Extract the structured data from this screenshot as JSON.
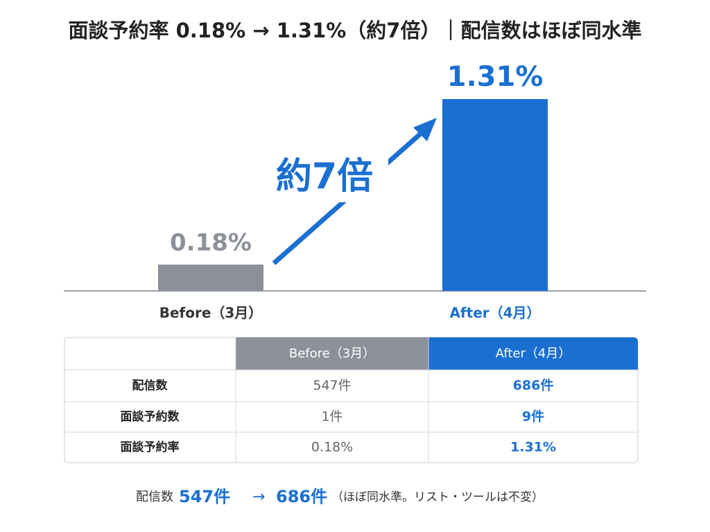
{
  "chart_data": {
    "type": "bar",
    "title": "面談予約率 0.18% → 1.31%（約7倍）｜配信数はほぼ同水準",
    "categories": [
      "Before（3月）",
      "After（4月）"
    ],
    "values": [
      0.18,
      1.31
    ],
    "value_labels": [
      "0.18%",
      "1.31%"
    ],
    "colors": [
      "#8b9099",
      "#1b6fd1"
    ],
    "annotation": "約7倍"
  },
  "table": {
    "columns": [
      "Before（3月）",
      "After（4月）"
    ],
    "rows": [
      [
        "配信数",
        "547件",
        "686件"
      ],
      [
        "面談予約数",
        "1件",
        "9件"
      ],
      [
        "面談予約率",
        "0.18%",
        "1.31%"
      ]
    ]
  },
  "footer": {
    "label": "配信数",
    "from": "547件",
    "arrow": "→",
    "to": "686件",
    "note": "（ほぼ同水準。リスト・ツールは不変）"
  }
}
